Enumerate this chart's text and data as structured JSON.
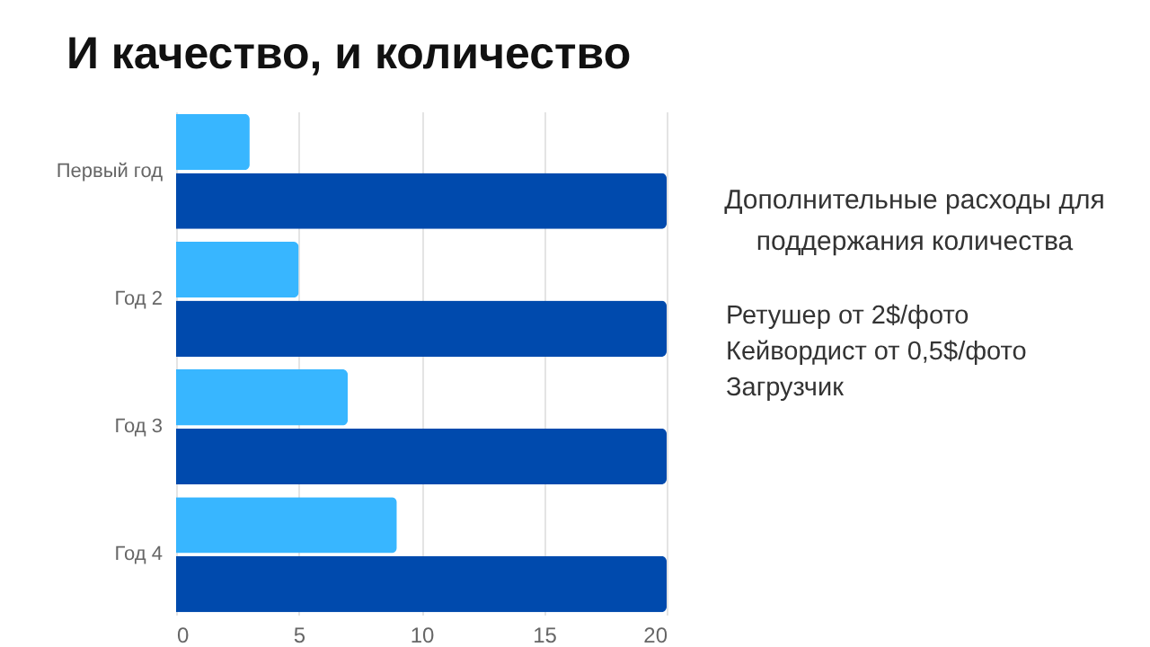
{
  "chart_data": {
    "type": "bar",
    "orientation": "horizontal",
    "title": "И качество, и количество",
    "categories": [
      "Первый год",
      "Год 2",
      "Год 3",
      "Год 4"
    ],
    "series": [
      {
        "color": "#38b6ff",
        "values": [
          3,
          5,
          7,
          9
        ]
      },
      {
        "color": "#004aad",
        "values": [
          20,
          20,
          20,
          20
        ]
      }
    ],
    "xlim": [
      0,
      20
    ],
    "xticks": [
      0,
      5,
      10,
      15,
      20
    ],
    "grid": "x",
    "legend": false,
    "annotations": [
      "Дополнительные расходы для поддержания количества",
      "Ретушер от 2$/фото",
      "Кейвордист от 0,5$/фото",
      "Загрузчик"
    ]
  }
}
